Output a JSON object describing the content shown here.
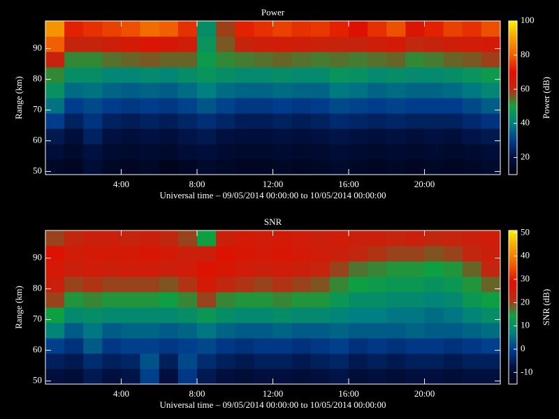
{
  "chart_data": [
    {
      "type": "heatmap",
      "title": "Power",
      "x_label": "Universal time – 09/05/2014 00:00:00 to 10/05/2014 00:00:00",
      "y_label": "Range (km)",
      "colorbar_label": "Power (dB)",
      "xlim": [
        0,
        24
      ],
      "ylim": [
        49,
        99
      ],
      "xticks": [
        {
          "value": 4,
          "label": "4:00"
        },
        {
          "value": 8,
          "label": "8:00"
        },
        {
          "value": 12,
          "label": "12:00"
        },
        {
          "value": 16,
          "label": "16:00"
        },
        {
          "value": 20,
          "label": "20:00"
        }
      ],
      "yticks": [
        50,
        60,
        70,
        80,
        90
      ],
      "clim": [
        10,
        100
      ],
      "cticks": [
        20,
        40,
        60,
        80,
        100
      ],
      "colormap": [
        "#000010",
        "#001040",
        "#003c8c",
        "#008080",
        "#10a040",
        "#c02810",
        "#e01000",
        "#f06000",
        "#f8a000",
        "#f8f000"
      ],
      "x_edges": [
        0,
        1,
        2,
        3,
        4,
        5,
        6,
        7,
        8,
        9,
        10,
        11,
        12,
        13,
        14,
        15,
        16,
        17,
        18,
        19,
        20,
        21,
        22,
        23,
        24
      ],
      "y_edges": [
        49,
        54,
        59,
        64,
        69,
        74,
        79,
        84,
        89,
        94,
        99
      ],
      "values": [
        [
          15,
          14,
          18,
          15,
          14,
          15,
          13,
          14,
          16,
          15,
          14,
          14,
          15,
          14,
          15,
          16,
          15,
          14,
          15,
          14,
          15,
          14,
          15,
          16
        ],
        [
          18,
          16,
          20,
          17,
          16,
          17,
          16,
          18,
          19,
          17,
          16,
          16,
          17,
          16,
          17,
          18,
          17,
          16,
          17,
          16,
          17,
          16,
          17,
          18
        ],
        [
          22,
          19,
          24,
          20,
          19,
          20,
          19,
          21,
          22,
          20,
          19,
          19,
          20,
          19,
          20,
          21,
          20,
          19,
          20,
          19,
          20,
          19,
          21,
          22
        ],
        [
          30,
          24,
          28,
          24,
          23,
          24,
          23,
          25,
          27,
          25,
          23,
          23,
          24,
          23,
          24,
          26,
          25,
          24,
          25,
          24,
          24,
          24,
          26,
          28
        ],
        [
          38,
          30,
          32,
          30,
          29,
          30,
          29,
          31,
          34,
          31,
          29,
          29,
          30,
          29,
          30,
          32,
          31,
          30,
          31,
          30,
          30,
          30,
          32,
          35
        ],
        [
          45,
          37,
          38,
          36,
          35,
          36,
          35,
          37,
          40,
          37,
          36,
          36,
          37,
          36,
          36,
          39,
          38,
          36,
          37,
          36,
          36,
          37,
          39,
          42
        ],
        [
          52,
          44,
          44,
          42,
          42,
          43,
          42,
          44,
          46,
          44,
          43,
          43,
          44,
          43,
          43,
          46,
          45,
          43,
          44,
          43,
          43,
          44,
          46,
          48
        ],
        [
          62,
          52,
          52,
          54,
          55,
          56,
          55,
          55,
          48,
          52,
          53,
          54,
          55,
          54,
          53,
          54,
          53,
          54,
          55,
          52,
          53,
          55,
          56,
          58
        ],
        [
          80,
          62,
          62,
          64,
          66,
          68,
          67,
          64,
          46,
          56,
          62,
          64,
          65,
          64,
          63,
          62,
          62,
          64,
          66,
          60,
          62,
          64,
          65,
          66
        ],
        [
          88,
          72,
          74,
          76,
          78,
          82,
          80,
          74,
          44,
          58,
          72,
          74,
          76,
          74,
          75,
          72,
          70,
          74,
          78,
          68,
          72,
          76,
          74,
          78
        ]
      ]
    },
    {
      "type": "heatmap",
      "title": "SNR",
      "x_label": "Universal time – 09/05/2014 00:00:00 to 10/05/2014 00:00:00",
      "y_label": "Range (km)",
      "colorbar_label": "SNR (dB)",
      "xlim": [
        0,
        24
      ],
      "ylim": [
        49,
        99
      ],
      "xticks": [
        {
          "value": 4,
          "label": "4:00"
        },
        {
          "value": 8,
          "label": "8:00"
        },
        {
          "value": 12,
          "label": "12:00"
        },
        {
          "value": 16,
          "label": "16:00"
        },
        {
          "value": 20,
          "label": "20:00"
        }
      ],
      "yticks": [
        50,
        60,
        70,
        80,
        90
      ],
      "clim": [
        -15,
        51
      ],
      "cticks": [
        -10,
        0,
        10,
        20,
        30,
        40,
        50
      ],
      "colormap": [
        "#000010",
        "#001040",
        "#003c8c",
        "#008080",
        "#10a040",
        "#c02810",
        "#e01000",
        "#f06000",
        "#f8a000",
        "#f8f000"
      ],
      "x_edges": [
        0,
        1,
        2,
        3,
        4,
        5,
        6,
        7,
        8,
        9,
        10,
        11,
        12,
        13,
        14,
        15,
        16,
        17,
        18,
        19,
        20,
        21,
        22,
        23,
        24
      ],
      "y_edges": [
        49,
        54,
        59,
        64,
        69,
        74,
        79,
        84,
        89,
        94,
        99
      ],
      "values": [
        [
          -8,
          -9,
          -6,
          -8,
          -7,
          0,
          -8,
          -1,
          -6,
          -8,
          -9,
          -8,
          -8,
          -9,
          -8,
          -7,
          -9,
          -8,
          -9,
          -8,
          -8,
          -9,
          -8,
          -8
        ],
        [
          -5,
          -6,
          -3,
          -5,
          -4,
          2,
          -5,
          1,
          -3,
          -5,
          -6,
          -5,
          -5,
          -6,
          -5,
          -4,
          -6,
          -5,
          -6,
          -5,
          -5,
          -6,
          -5,
          -5
        ],
        [
          0,
          -2,
          3,
          -1,
          0,
          0,
          -1,
          0,
          1,
          -1,
          -2,
          -1,
          -1,
          -2,
          -1,
          0,
          -2,
          -1,
          -2,
          -1,
          -1,
          -2,
          -1,
          0
        ],
        [
          8,
          3,
          6,
          3,
          4,
          4,
          3,
          4,
          6,
          4,
          3,
          3,
          4,
          3,
          3,
          4,
          3,
          3,
          3,
          4,
          3,
          3,
          4,
          5
        ],
        [
          14,
          9,
          10,
          9,
          9,
          9,
          9,
          10,
          12,
          10,
          9,
          9,
          10,
          9,
          9,
          8,
          7,
          7,
          6,
          6,
          5,
          6,
          8,
          10
        ],
        [
          20,
          15,
          16,
          15,
          15,
          15,
          14,
          16,
          20,
          16,
          15,
          15,
          16,
          15,
          15,
          12,
          10,
          10,
          9,
          9,
          8,
          9,
          12,
          14
        ],
        [
          24,
          20,
          21,
          20,
          20,
          20,
          19,
          21,
          26,
          22,
          21,
          20,
          21,
          20,
          19,
          16,
          14,
          13,
          12,
          12,
          11,
          12,
          15,
          18
        ],
        [
          26,
          24,
          25,
          24,
          25,
          25,
          24,
          25,
          28,
          27,
          25,
          24,
          25,
          24,
          23,
          20,
          17,
          16,
          15,
          15,
          14,
          15,
          18,
          22
        ],
        [
          28,
          25,
          26,
          26,
          26,
          27,
          26,
          24,
          24,
          28,
          27,
          26,
          27,
          26,
          25,
          24,
          22,
          21,
          20,
          20,
          19,
          20,
          22,
          24
        ],
        [
          20,
          22,
          24,
          24,
          23,
          24,
          22,
          20,
          14,
          24,
          26,
          25,
          26,
          25,
          24,
          25,
          24,
          24,
          23,
          24,
          22,
          23,
          24,
          25
        ]
      ]
    }
  ]
}
